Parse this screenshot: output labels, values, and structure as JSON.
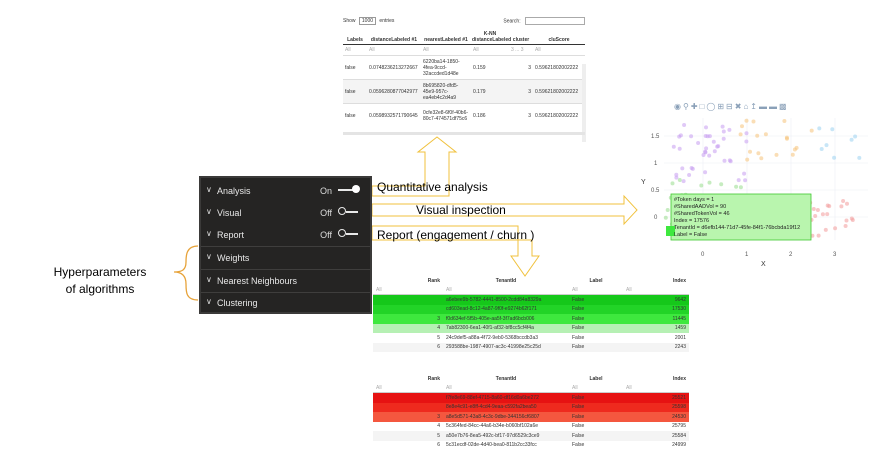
{
  "top_table": {
    "show_label": "Show",
    "show_value": "1000",
    "entries_label": "entries",
    "search_label": "Search:",
    "headers": [
      "Labels",
      "distanceLabeled #1",
      "nearestLabeled #1",
      "K-NN distanceLabeled",
      "cluster",
      "cluScore"
    ],
    "filters": [
      "All",
      "All",
      "All",
      "All",
      "3 ... 3",
      "All"
    ],
    "rows": [
      [
        "false",
        "0.0748236213272667",
        "6220ba14-1850-4fea-9ccd-32accded1d48e",
        "0.159",
        "3",
        "0.59621802002222"
      ],
      [
        "false",
        "0.0596280877042977",
        "8b695820-dfd5-45e9-957c-ea4eb4c2d4a9",
        "0.179",
        "3",
        "0.59621802002222"
      ],
      [
        "false",
        "0.0598932571790645",
        "0cfe32e8-6f0f-40b6-80c7-474571df75c6",
        "0.186",
        "3",
        "0.59621802002222"
      ]
    ]
  },
  "panel": {
    "items": [
      {
        "label": "Analysis",
        "state": "On"
      },
      {
        "label": "Visual",
        "state": "Off"
      },
      {
        "label": "Report",
        "state": "Off"
      },
      {
        "label": "Weights"
      },
      {
        "label": "Nearest Neighbours"
      },
      {
        "label": "Clustering"
      }
    ]
  },
  "labels": {
    "quant": "Quantitative analysis",
    "visual": "Visual inspection",
    "report": "Report (engagement / churn )",
    "hyper_line1": "Hyperparameters",
    "hyper_line2": "of algorithms"
  },
  "scatter": {
    "x_label": "X",
    "y_label": "Y",
    "x_ticks": [
      "0",
      "1",
      "2",
      "3"
    ],
    "y_ticks": [
      "1.5",
      "1",
      "0.5",
      "0"
    ],
    "tooltip": [
      "#Token days = 1",
      "#SharedAADVol = 90",
      "#SharedTokenVol = 46",
      "Index = 17576",
      "TenantId = d6efb144-71d7-45fe-84f1-76bcbda19f12",
      "Label = False"
    ]
  },
  "table_green": {
    "headers": [
      "Rank",
      "TenantId",
      "Label",
      "Index"
    ],
    "filters": [
      "All",
      "All",
      "All",
      "All"
    ],
    "rows": [
      {
        "rank": "",
        "tenant": "a6ebee9b-5782-4441-8500-2cdd84a8329a",
        "label": "False",
        "index": "9642",
        "bg": "#15c81a"
      },
      {
        "rank": "",
        "tenant": "cd603ead-8c12-4a87-9f0f-e9274b62f171",
        "label": "False",
        "index": "17530",
        "bg": "#22d427"
      },
      {
        "rank": "3",
        "tenant": "f0d634ef-5f5b-405e-aa5f-3f7ad6bcb006",
        "label": "False",
        "index": "11445",
        "bg": "#3ee83e"
      },
      {
        "rank": "4",
        "tenant": "7ab82300-6ea1-40f1-af32-bf8cc5cf4f4a",
        "label": "False",
        "index": "1459",
        "bg": "#b6f0b4"
      },
      {
        "rank": "5",
        "tenant": "24c9def5-a88a-4f72-9eb0-5368bccdb3a3",
        "label": "False",
        "index": "2001",
        "bg": "#ffffff"
      },
      {
        "rank": "6",
        "tenant": "293588be-1987-4907-ac3c-41998e25c25d",
        "label": "False",
        "index": "2243",
        "bg": "#f4f4f4"
      }
    ]
  },
  "table_red": {
    "headers": [
      "Rank",
      "TenantId",
      "Label",
      "Index"
    ],
    "filters": [
      "All",
      "All",
      "All",
      "All"
    ],
    "rows": [
      {
        "rank": "",
        "tenant": "f7fe8e69-88ef-4715-8a60-df16d0a6be272",
        "label": "False",
        "index": "25521",
        "bg": "#e61212"
      },
      {
        "rank": "",
        "tenant": "8e8e4c91-e8ff-4cd4-9eaa-c592fa2bea50",
        "label": "False",
        "index": "25598",
        "bg": "#ee2a1e"
      },
      {
        "rank": "3",
        "tenant": "a8e5d571-43a8-4c3c-9dbe-344156cf6807",
        "label": "False",
        "index": "24530",
        "bg": "#f4573f"
      },
      {
        "rank": "4",
        "tenant": "5c364fed-84cc-44a6-b34e-b060bf102a6e",
        "label": "False",
        "index": "25795",
        "bg": "#ffffff"
      },
      {
        "rank": "5",
        "tenant": "a50e7b76-8ea5-492c-bf17-97d6529c3ce9",
        "label": "False",
        "index": "25584",
        "bg": "#f4f4f4"
      },
      {
        "rank": "6",
        "tenant": "5c31ecdf-02de-4d40-bea0-811b2cc33fcc",
        "label": "False",
        "index": "24999",
        "bg": "#ffffff"
      }
    ]
  },
  "colors": {
    "arrow": "#f0c13c",
    "panel_bg": "#252423",
    "brace": "#e7a33a"
  }
}
